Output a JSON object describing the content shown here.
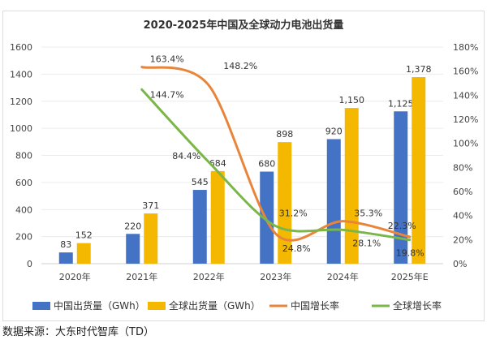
{
  "chart_data": {
    "type": "bar+line",
    "title": "2020-2025年中国及全球动力电池出货量",
    "categories": [
      "2020年",
      "2021年",
      "2022年",
      "2023年",
      "2024年",
      "2025年E"
    ],
    "y_left": {
      "range": [
        0,
        1600
      ],
      "ticks": [
        "0",
        "200",
        "400",
        "600",
        "800",
        "1000",
        "1200",
        "1400",
        "1600"
      ]
    },
    "y_right": {
      "range": [
        0,
        180
      ],
      "ticks": [
        "0%",
        "20%",
        "40%",
        "60%",
        "80%",
        "100%",
        "120%",
        "140%",
        "160%",
        "180%"
      ]
    },
    "grid": true,
    "legend_position": "bottom",
    "series": [
      {
        "name": "中国出货量（GWh）",
        "type": "bar",
        "axis": "left",
        "color": "#4472C4",
        "values": [
          83,
          220,
          545,
          680,
          920,
          1125
        ],
        "labels": [
          "83",
          "220",
          "545",
          "680",
          "920",
          "1,125"
        ]
      },
      {
        "name": "全球出货量（GWh）",
        "type": "bar",
        "axis": "left",
        "color": "#F5B800",
        "values": [
          152,
          371,
          684,
          898,
          1150,
          1378
        ],
        "labels": [
          "152",
          "371",
          "684",
          "898",
          "1,150",
          "1,378"
        ]
      },
      {
        "name": "中国增长率",
        "type": "line",
        "axis": "right",
        "color": "#E8853A",
        "values": [
          null,
          163.4,
          148.2,
          24.8,
          35.3,
          22.3
        ],
        "labels": [
          "",
          "163.4%",
          "148.2%",
          "24.8%",
          "35.3%",
          "22.3%"
        ]
      },
      {
        "name": "全球增长率",
        "type": "line",
        "axis": "right",
        "color": "#7AB648",
        "values": [
          null,
          144.7,
          84.4,
          31.2,
          28.1,
          19.8
        ],
        "labels": [
          "",
          "144.7%",
          "84.4%",
          "31.2%",
          "28.1%",
          "19.8%"
        ]
      }
    ]
  },
  "watermark": "大东时代智库（TD）",
  "source": "数据来源：大东时代智库（TD）"
}
